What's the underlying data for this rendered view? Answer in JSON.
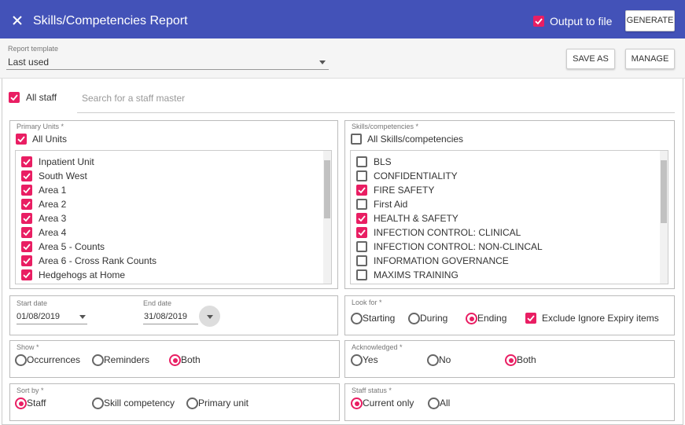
{
  "header": {
    "title": "Skills/Competencies Report",
    "output_to_file": {
      "text": "Output to file",
      "checked": true
    },
    "generate": "GENERATE"
  },
  "template": {
    "label": "Report template",
    "value": "Last used",
    "save_as": "SAVE AS",
    "manage": "MANAGE"
  },
  "staff": {
    "all_staff": {
      "text": "All staff",
      "checked": true
    },
    "search_placeholder": "Search for a staff master"
  },
  "primary_units": {
    "label": "Primary Units *",
    "all": {
      "text": "All Units",
      "checked": true
    },
    "items": [
      {
        "text": "Inpatient Unit",
        "checked": true
      },
      {
        "text": "South West",
        "checked": true
      },
      {
        "text": "Area 1",
        "checked": true
      },
      {
        "text": "Area 2",
        "checked": true
      },
      {
        "text": "Area 3",
        "checked": true
      },
      {
        "text": "Area 4",
        "checked": true
      },
      {
        "text": "Area 5 - Counts",
        "checked": true
      },
      {
        "text": "Area 6 - Cross Rank Counts",
        "checked": true
      },
      {
        "text": "Hedgehogs at Home",
        "checked": true
      }
    ]
  },
  "skills": {
    "label": "Skills/competencies *",
    "all": {
      "text": "All Skills/competencies",
      "checked": false
    },
    "items": [
      {
        "text": "BLS",
        "checked": false
      },
      {
        "text": "CONFIDENTIALITY",
        "checked": false
      },
      {
        "text": "FIRE SAFETY",
        "checked": true
      },
      {
        "text": "First Aid",
        "checked": false
      },
      {
        "text": "HEALTH & SAFETY",
        "checked": true
      },
      {
        "text": "INFECTION CONTROL: CLINICAL",
        "checked": true
      },
      {
        "text": "INFECTION CONTROL: NON-CLINCAL",
        "checked": false
      },
      {
        "text": "INFORMATION GOVERNANCE",
        "checked": false
      },
      {
        "text": "MAXIMS TRAINING",
        "checked": false
      }
    ]
  },
  "dates": {
    "start_label": "Start date",
    "start_value": "01/08/2019",
    "end_label": "End date",
    "end_value": "31/08/2019"
  },
  "look_for": {
    "label": "Look for *",
    "options": [
      "Starting",
      "During",
      "Ending"
    ],
    "selected": 2,
    "exclude": {
      "text": "Exclude Ignore Expiry items",
      "checked": true
    }
  },
  "show": {
    "label": "Show *",
    "options": [
      "Occurrences",
      "Reminders",
      "Both"
    ],
    "selected": 2
  },
  "acknowledged": {
    "label": "Acknowledged *",
    "options": [
      "Yes",
      "No",
      "Both"
    ],
    "selected": 2
  },
  "sort_by": {
    "label": "Sort by *",
    "options": [
      "Staff",
      "Skill competency",
      "Primary unit"
    ],
    "selected": 0
  },
  "staff_status": {
    "label": "Staff status *",
    "options": [
      "Current only",
      "All"
    ],
    "selected": 0
  }
}
